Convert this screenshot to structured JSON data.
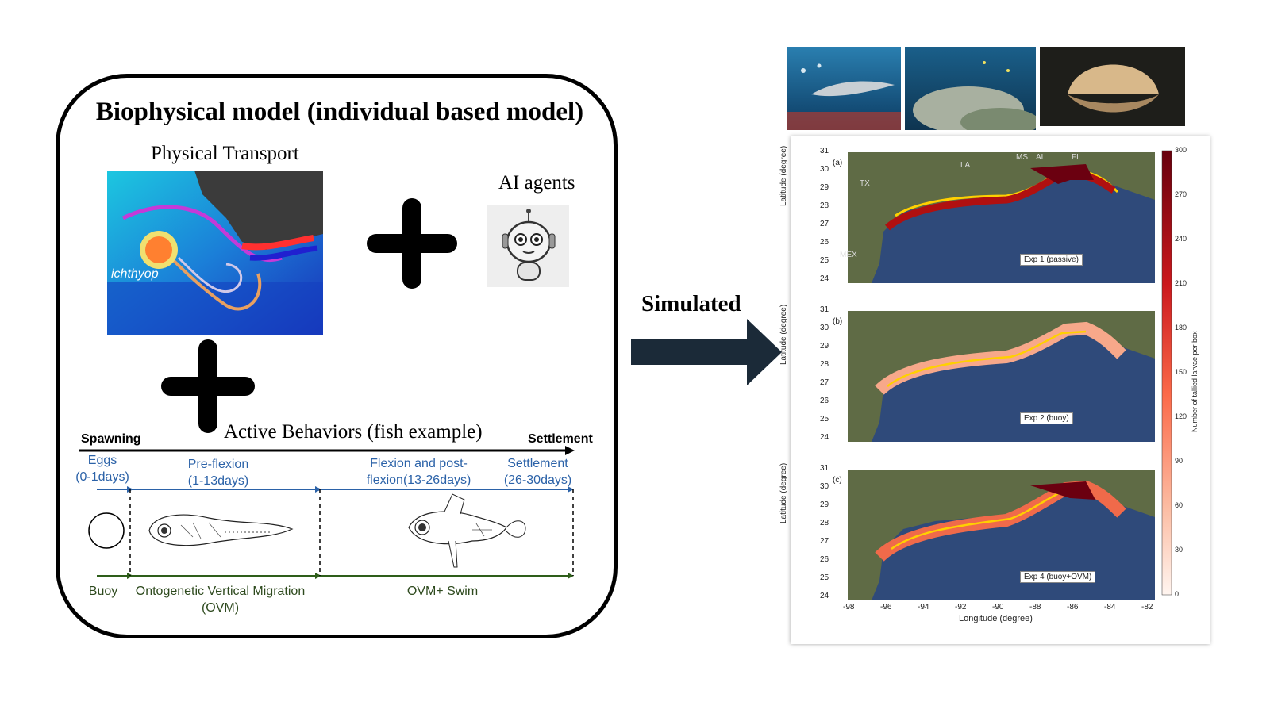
{
  "left_panel": {
    "title": "Biophysical model (individual based model)",
    "physical_transport": "Physical Transport",
    "ai_agents": "AI agents",
    "active_behaviors": "Active Behaviors (fish example)",
    "spawning": "Spawning",
    "settlement_header": "Settlement",
    "stages": [
      {
        "line1": "Eggs",
        "line2": "(0-1days)"
      },
      {
        "line1": "Pre-flexion",
        "line2": "(1-13days)"
      },
      {
        "line1": "Flexion and post-",
        "line2": "flexion(13-26days)"
      },
      {
        "line1": "Settlement",
        "line2": "(26-30days)"
      }
    ],
    "behaviors": [
      {
        "line1": "Buoy",
        "line2": ""
      },
      {
        "line1": "Ontogenetic Vertical Migration",
        "line2": "(OVM)"
      },
      {
        "line1": "OVM+ Swim",
        "line2": ""
      }
    ]
  },
  "arrow_label": "Simulated",
  "figure": {
    "colorbar_label": "Number of tallied larvae per box",
    "colorbar_ticks": [
      "300",
      "270",
      "240",
      "210",
      "180",
      "150",
      "120",
      "90",
      "60",
      "30",
      "0"
    ],
    "xlabel": "Longitude (degree)",
    "ylabel": "Latitude (degree)",
    "x_ticks": [
      "-98",
      "-96",
      "-94",
      "-92",
      "-90",
      "-88",
      "-86",
      "-84",
      "-82"
    ],
    "y_ticks": [
      "31",
      "30",
      "29",
      "28",
      "27",
      "26",
      "25",
      "24"
    ],
    "region_labels": {
      "tx": "TX",
      "la": "LA",
      "ms": "MS",
      "al": "AL",
      "fl": "FL",
      "mex": "MEX"
    },
    "panels": [
      {
        "tag": "(a)",
        "label": "Exp 1 (passive)"
      },
      {
        "tag": "(b)",
        "label": "Exp 2 (buoy)"
      },
      {
        "tag": "(c)",
        "label": "Exp 4 (buoy+OVM)"
      }
    ]
  }
}
